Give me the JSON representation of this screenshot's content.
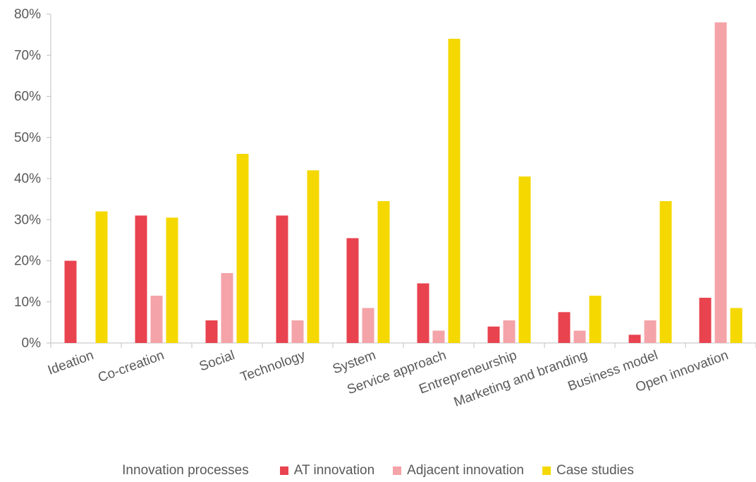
{
  "chart_data": {
    "type": "bar",
    "title": "",
    "xlabel": "",
    "ylabel": "",
    "ylim": [
      0,
      80
    ],
    "y_tick_step": 10,
    "y_tick_format": "percent",
    "grid": false,
    "legend_position": "bottom",
    "legend_title": "Innovation processes",
    "categories": [
      "Ideation",
      "Co-creation",
      "Social",
      "Technology",
      "System",
      "Service approach",
      "Entrepreneurship",
      "Marketing and branding",
      "Business model",
      "Open innovation"
    ],
    "series": [
      {
        "name": "AT innovation",
        "color": "#e8434f",
        "values": [
          20,
          31,
          5.5,
          31,
          25.5,
          14.5,
          4,
          7.5,
          2,
          11
        ]
      },
      {
        "name": "Adjacent innovation",
        "color": "#f4a3a8",
        "values": [
          0,
          11.5,
          17,
          5.5,
          8.5,
          3,
          5.5,
          3,
          5.5,
          78
        ]
      },
      {
        "name": "Case studies",
        "color": "#f5d800",
        "values": [
          32,
          30.5,
          46,
          42,
          34.5,
          74,
          40.5,
          11.5,
          34.5,
          8.5
        ]
      }
    ]
  }
}
